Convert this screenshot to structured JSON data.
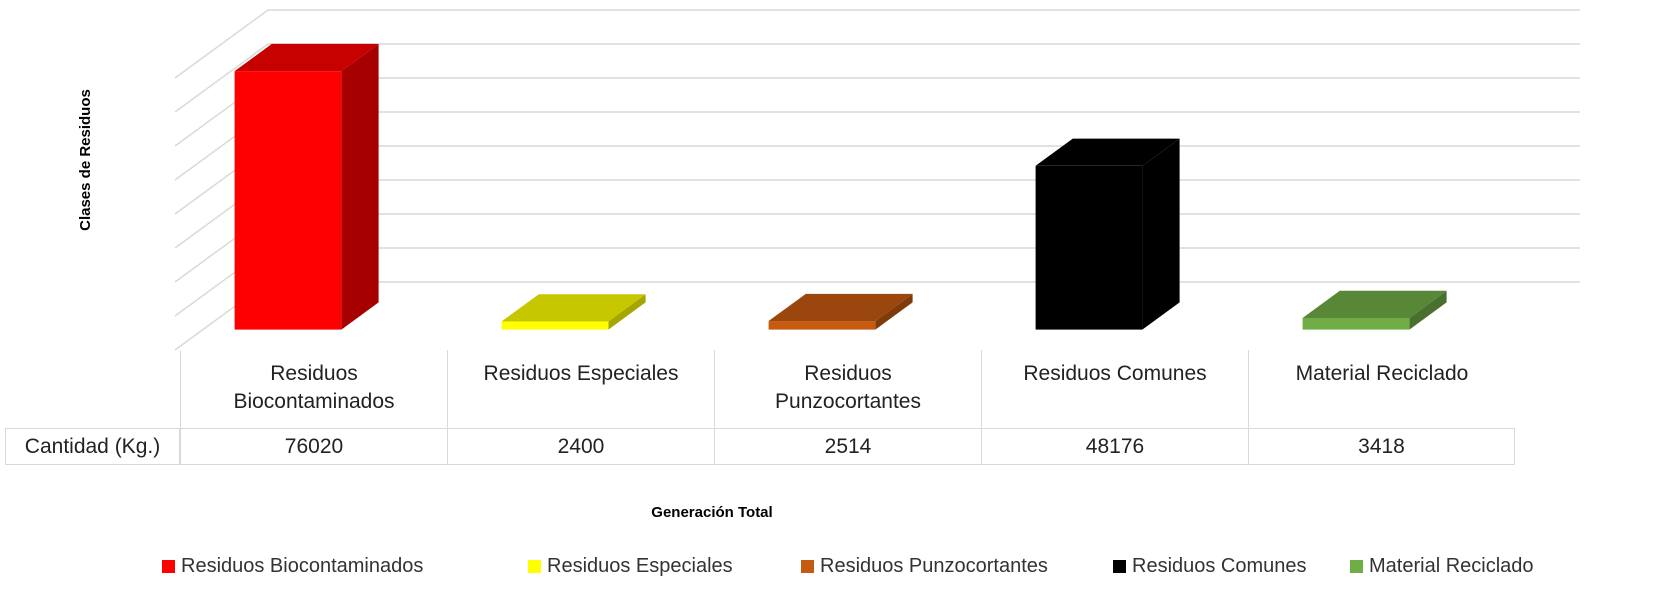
{
  "chart_data": {
    "type": "bar3d",
    "y_axis_label": "Clases de Residuos",
    "x_axis_label": "Generación  Total",
    "row_label": "Cantidad (Kg.)",
    "categories": [
      "Residuos Biocontaminados",
      "Residuos Especiales",
      "Residuos Punzocortantes",
      "Residuos Comunes",
      "Material Reciclado"
    ],
    "values": [
      76020,
      2400,
      2514,
      48176,
      3418
    ],
    "colors": [
      "#ff0000",
      "#ffff00",
      "#c55a11",
      "#000000",
      "#70ad47"
    ],
    "ylim": [
      0,
      80000
    ],
    "yticks": [
      0,
      10000,
      20000,
      30000,
      40000,
      50000,
      60000,
      70000,
      80000
    ],
    "grid": true,
    "legend": "bottom"
  }
}
